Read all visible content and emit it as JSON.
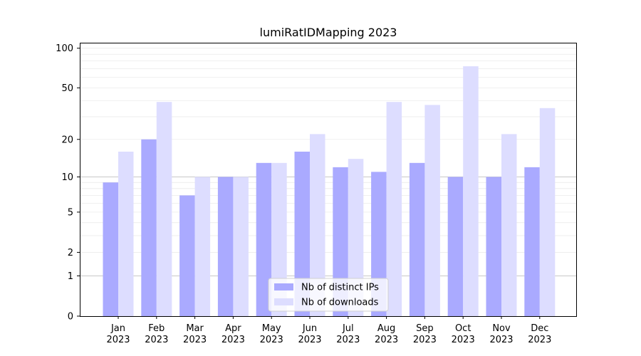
{
  "chart_data": {
    "type": "bar",
    "title": "lumiRatIDMapping 2023",
    "xlabel": "",
    "ylabel": "",
    "scale": "log1p",
    "ylim": [
      0,
      110
    ],
    "yticks": [
      0,
      1,
      2,
      5,
      10,
      20,
      50,
      100
    ],
    "grid": true,
    "legend_position": "lower center",
    "categories": [
      "Jan\n2023",
      "Feb\n2023",
      "Mar\n2023",
      "Apr\n2023",
      "May\n2023",
      "Jun\n2023",
      "Jul\n2023",
      "Aug\n2023",
      "Sep\n2023",
      "Oct\n2023",
      "Nov\n2023",
      "Dec\n2023"
    ],
    "series": [
      {
        "name": "Nb of distinct IPs",
        "color": "#aaaaff",
        "values": [
          9,
          20,
          7,
          10,
          13,
          16,
          12,
          11,
          13,
          10,
          10,
          12
        ]
      },
      {
        "name": "Nb of downloads",
        "color": "#ddddff",
        "values": [
          16,
          39,
          10,
          10,
          13,
          22,
          14,
          39,
          37,
          73,
          22,
          35
        ]
      }
    ]
  }
}
